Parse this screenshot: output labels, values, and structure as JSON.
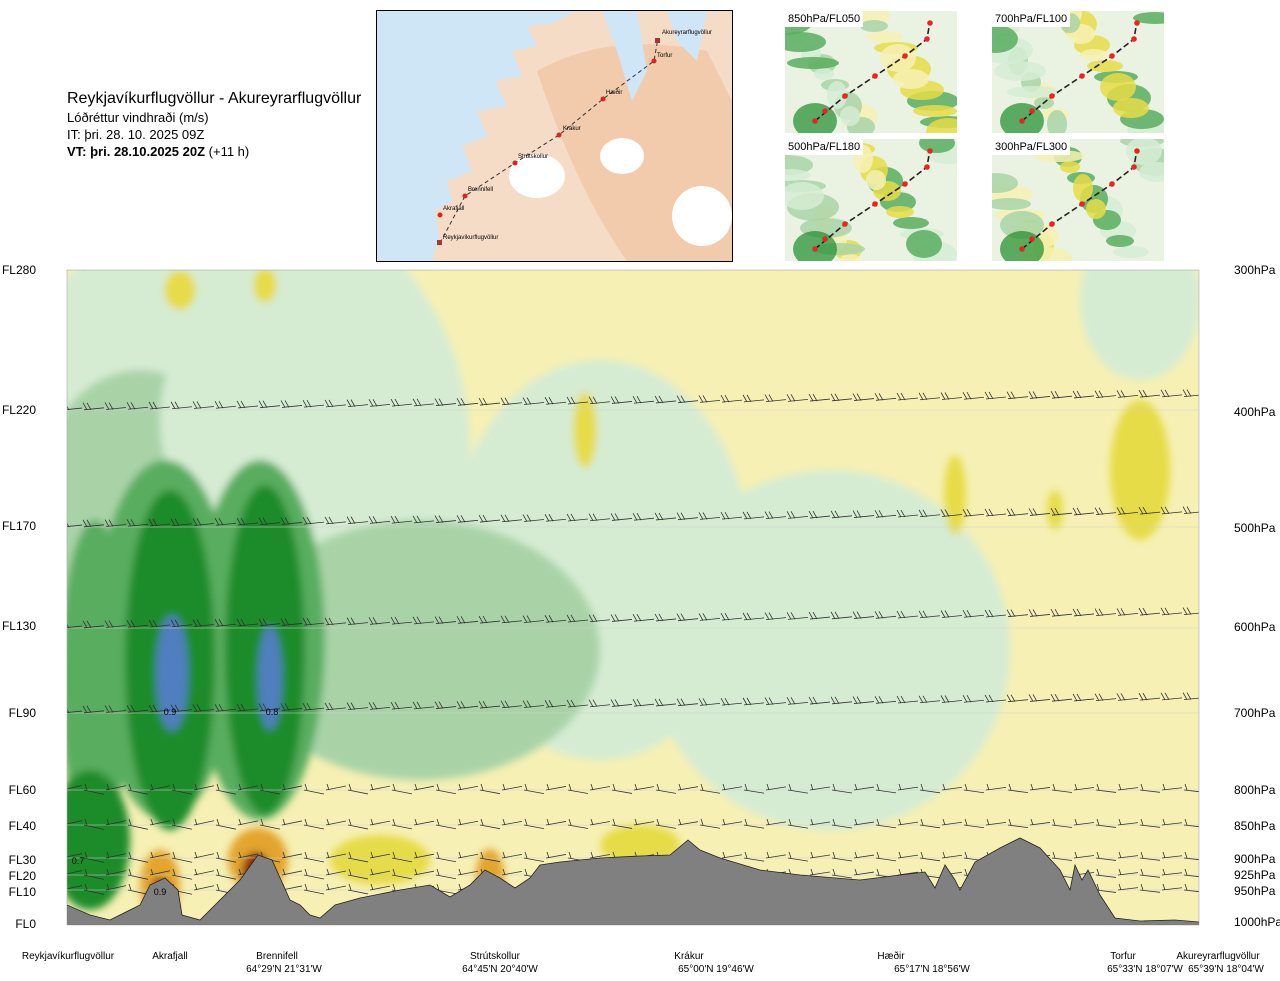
{
  "header": {
    "route": "Reykjavíkurflugvöllur - Akureyrarflugvöllur",
    "variable": "Lóðréttur vindhraði (m/s)",
    "issue_time": "IT: þri. 28. 10. 2025 09Z",
    "valid_time": "VT: þri. 28.10.2025 20Z",
    "lead_time": "(+11 h)"
  },
  "route_map": {
    "places": [
      "Akureyrarflugvöllur",
      "Torfur",
      "Hæðir",
      "Krákur",
      "Strútskollur",
      "Brennifell",
      "Akrafjall",
      "Reykjavíkurflugvöllur"
    ]
  },
  "level_maps": [
    {
      "label": "850hPa/FL050"
    },
    {
      "label": "700hPa/FL100"
    },
    {
      "label": "500hPa/FL180"
    },
    {
      "label": "300hPa/FL300"
    }
  ],
  "chart_data": {
    "type": "heatmap",
    "title": "Lóðréttur vindhraði (m/s)",
    "colors": {
      "strong_up": "#4f7fbf",
      "up_dark": "#1c8c2c",
      "up_mid": "#59ad5f",
      "up_light": "#a9d3a7",
      "up_faint": "#d5ecd3",
      "down_faint": "#f6f0b4",
      "down_mid": "#e6dc46",
      "down_strong": "#e3a52e",
      "down_extreme": "#8b2a0f",
      "terrain": "#808080"
    },
    "flight_levels": [
      "FL280",
      "FL220",
      "FL170",
      "FL130",
      "FL90",
      "FL60",
      "FL40",
      "FL30",
      "FL20",
      "FL10",
      "FL0"
    ],
    "pressure_levels": [
      "300hPa",
      "400hPa",
      "500hPa",
      "600hPa",
      "700hPa",
      "800hPa",
      "850hPa",
      "900hPa",
      "925hPa",
      "950hPa",
      "1000hPa"
    ],
    "annotations": [
      "0.9",
      "0.8",
      "0.7",
      "0.9"
    ],
    "waypoints": [
      {
        "name": "Reykjavíkurflugvöllur",
        "coord": ""
      },
      {
        "name": "Akrafjall",
        "coord": ""
      },
      {
        "name": "Brennifell",
        "coord": "64°29'N 21°31'W"
      },
      {
        "name": "Strútskollur",
        "coord": "64°45'N 20°40'W"
      },
      {
        "name": "Krákur",
        "coord": "65°00'N 19°46'W"
      },
      {
        "name": "Hæðir",
        "coord": "65°17'N 18°56'W"
      },
      {
        "name": "Torfur",
        "coord": "65°33'N 18°07'W"
      },
      {
        "name": "Akureyrarflugvöllur",
        "coord": "65°39'N 18°04'W"
      }
    ]
  }
}
